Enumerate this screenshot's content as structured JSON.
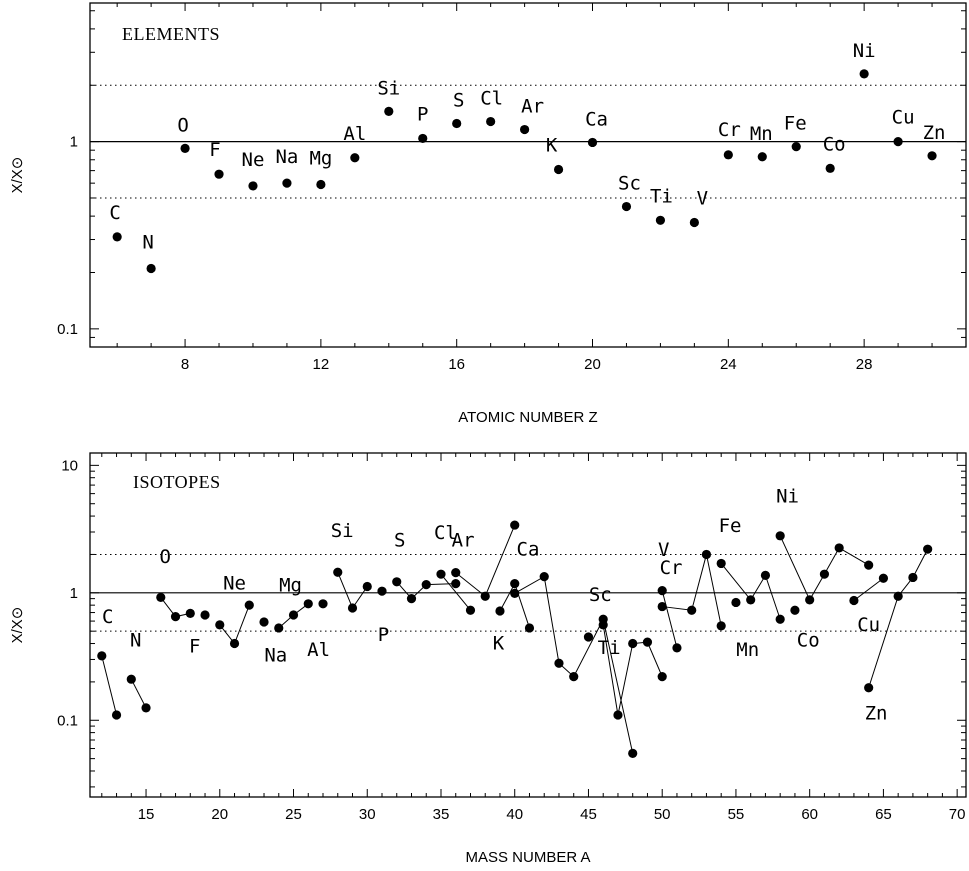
{
  "chart_data": [
    {
      "type": "scatter",
      "panel_title": "ELEMENTS",
      "xlabel": "ATOMIC NUMBER Z",
      "ylabel": "X/X⊙",
      "yscale": "log",
      "xlim": [
        5.2,
        31
      ],
      "ylim": [
        0.08,
        5.5
      ],
      "xticks": [
        8,
        12,
        16,
        20,
        24,
        28
      ],
      "yticks": [
        0.1,
        1
      ],
      "ytick_labels": [
        "0.1",
        "1"
      ],
      "reference_lines": [
        {
          "y": 1,
          "style": "solid"
        },
        {
          "y": 2,
          "style": "dotted"
        },
        {
          "y": 0.5,
          "style": "dotted"
        }
      ],
      "points": [
        {
          "label": "C",
          "x": 6,
          "y": 0.31
        },
        {
          "label": "N",
          "x": 7,
          "y": 0.21
        },
        {
          "label": "O",
          "x": 8,
          "y": 0.92
        },
        {
          "label": "F",
          "x": 9,
          "y": 0.67
        },
        {
          "label": "Ne",
          "x": 10,
          "y": 0.58
        },
        {
          "label": "Na",
          "x": 11,
          "y": 0.6
        },
        {
          "label": "Mg",
          "x": 12,
          "y": 0.59
        },
        {
          "label": "Al",
          "x": 13,
          "y": 0.82
        },
        {
          "label": "Si",
          "x": 14,
          "y": 1.45
        },
        {
          "label": "P",
          "x": 15,
          "y": 1.04
        },
        {
          "label": "S",
          "x": 16,
          "y": 1.25
        },
        {
          "label": "Cl",
          "x": 17,
          "y": 1.28
        },
        {
          "label": "Ar",
          "x": 18,
          "y": 1.16
        },
        {
          "label": "K",
          "x": 19,
          "y": 0.71
        },
        {
          "label": "Ca",
          "x": 20,
          "y": 0.99
        },
        {
          "label": "Sc",
          "x": 21,
          "y": 0.45
        },
        {
          "label": "Ti",
          "x": 22,
          "y": 0.38
        },
        {
          "label": "V",
          "x": 23,
          "y": 0.37
        },
        {
          "label": "Cr",
          "x": 24,
          "y": 0.85
        },
        {
          "label": "Mn",
          "x": 25,
          "y": 0.83
        },
        {
          "label": "Fe",
          "x": 26,
          "y": 0.94
        },
        {
          "label": "Co",
          "x": 27,
          "y": 0.72
        },
        {
          "label": "Ni",
          "x": 28,
          "y": 2.3
        },
        {
          "label": "Cu",
          "x": 29,
          "y": 1.0
        },
        {
          "label": "Zn",
          "x": 30,
          "y": 0.84
        }
      ]
    },
    {
      "type": "line",
      "panel_title": "ISOTOPES",
      "xlabel": "MASS NUMBER  A",
      "ylabel": "X/X⊙",
      "yscale": "log",
      "xlim": [
        11.2,
        70.6
      ],
      "ylim": [
        0.025,
        12.5
      ],
      "xticks": [
        15,
        20,
        25,
        30,
        35,
        40,
        45,
        50,
        55,
        60,
        65,
        70
      ],
      "yticks": [
        0.1,
        1,
        10
      ],
      "ytick_labels": [
        "0.1",
        "1",
        "10"
      ],
      "reference_lines": [
        {
          "y": 1,
          "style": "solid"
        },
        {
          "y": 2,
          "style": "dotted"
        },
        {
          "y": 0.5,
          "style": "dotted"
        }
      ],
      "series": [
        {
          "label": "C",
          "x": [
            12,
            13
          ],
          "y": [
            0.32,
            0.11
          ]
        },
        {
          "label": "N",
          "x": [
            14,
            15
          ],
          "y": [
            0.21,
            0.125
          ]
        },
        {
          "label": "O",
          "x": [
            16,
            17,
            18
          ],
          "y": [
            0.92,
            0.65,
            0.69
          ]
        },
        {
          "label": "F",
          "x": [
            19
          ],
          "y": [
            0.67
          ]
        },
        {
          "label": "Ne",
          "x": [
            20,
            21,
            22
          ],
          "y": [
            0.56,
            0.4,
            0.8
          ]
        },
        {
          "label": "Na",
          "x": [
            23
          ],
          "y": [
            0.59
          ]
        },
        {
          "label": "Mg",
          "x": [
            24,
            25,
            26
          ],
          "y": [
            0.53,
            0.67,
            0.82
          ]
        },
        {
          "label": "Al",
          "x": [
            27
          ],
          "y": [
            0.82
          ]
        },
        {
          "label": "Si",
          "x": [
            28,
            29,
            30
          ],
          "y": [
            1.45,
            0.76,
            1.12
          ]
        },
        {
          "label": "P",
          "x": [
            31
          ],
          "y": [
            1.03
          ]
        },
        {
          "label": "S",
          "x": [
            32,
            33,
            34,
            36
          ],
          "y": [
            1.22,
            0.9,
            1.16,
            1.18
          ]
        },
        {
          "label": "Cl",
          "x": [
            35,
            37
          ],
          "y": [
            1.4,
            0.73
          ]
        },
        {
          "label": "Ar",
          "x": [
            36,
            38,
            40
          ],
          "y": [
            1.44,
            0.94,
            3.4
          ]
        },
        {
          "label": "K",
          "x": [
            39,
            40,
            41
          ],
          "y": [
            0.72,
            1.18,
            0.53
          ]
        },
        {
          "label": "Ca",
          "x": [
            40,
            42,
            43,
            44,
            46,
            48
          ],
          "y": [
            0.99,
            1.34,
            0.28,
            0.22,
            0.62,
            0.055
          ]
        },
        {
          "label": "Sc",
          "x": [
            45
          ],
          "y": [
            0.45
          ]
        },
        {
          "label": "Ti",
          "x": [
            46,
            47,
            48,
            49,
            50
          ],
          "y": [
            0.56,
            0.11,
            0.4,
            0.41,
            0.22
          ]
        },
        {
          "label": "V",
          "x": [
            50,
            51
          ],
          "y": [
            1.04,
            0.37
          ]
        },
        {
          "label": "Cr",
          "x": [
            50,
            52,
            53,
            54
          ],
          "y": [
            0.78,
            0.73,
            2.0,
            0.55
          ]
        },
        {
          "label": "Mn",
          "x": [
            55
          ],
          "y": [
            0.84
          ]
        },
        {
          "label": "Fe",
          "x": [
            54,
            56,
            57,
            58
          ],
          "y": [
            1.7,
            0.88,
            1.37,
            0.62
          ]
        },
        {
          "label": "Co",
          "x": [
            59
          ],
          "y": [
            0.73
          ]
        },
        {
          "label": "Ni",
          "x": [
            58,
            60,
            61,
            62,
            64
          ],
          "y": [
            2.8,
            0.88,
            1.4,
            2.25,
            1.65
          ]
        },
        {
          "label": "Cu",
          "x": [
            63,
            65
          ],
          "y": [
            0.87,
            1.3
          ]
        },
        {
          "label": "Zn",
          "x": [
            64,
            66,
            67,
            68
          ],
          "y": [
            0.18,
            0.94,
            1.32,
            2.2
          ]
        }
      ]
    }
  ]
}
